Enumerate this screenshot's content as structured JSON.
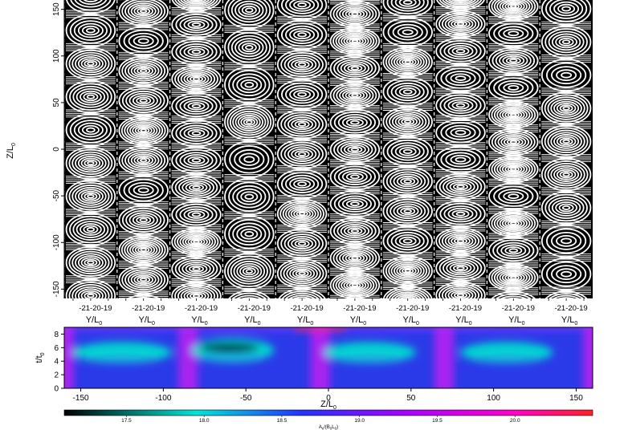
{
  "chart_data": [
    {
      "type": "contour",
      "panel_count": 10,
      "ylabel": "Z/L",
      "ylabel_sub": "0",
      "xlabel": "Y/L",
      "xlabel_sub": "0",
      "yticks": [
        150,
        100,
        50,
        0,
        -50,
        -100,
        -150
      ],
      "ylim": [
        -160,
        160
      ],
      "panel_xticks": [
        "-21",
        "-20",
        "-19"
      ],
      "panel_xlim": [
        -21.5,
        -18.5
      ]
    },
    {
      "type": "heatmap",
      "ylabel": "t/t",
      "ylabel_sub": "0",
      "xlabel": "Z/L",
      "xlabel_sub": "0",
      "xticks": [
        -150,
        -100,
        -50,
        0,
        50,
        100,
        150
      ],
      "xlim": [
        -160,
        160
      ],
      "yticks": [
        0,
        2,
        4,
        6,
        8
      ],
      "ylim": [
        0,
        9
      ],
      "colorbar": {
        "label": "A",
        "label_sub": "y",
        "label_suffix": "/(B",
        "label_sub2": "0",
        "label_mid": "L",
        "label_sub3": "0",
        "label_end": ")",
        "ticks": [
          17.5,
          18.0,
          18.5,
          19.0,
          19.5,
          20.0
        ],
        "range": [
          17.1,
          20.5
        ],
        "colors": [
          "#000000",
          "#00e5d8",
          "#2233ff",
          "#aa00ff",
          "#ff00cc",
          "#ff2222"
        ]
      },
      "cyan_regions": [
        {
          "z_center": -125,
          "z_half_width": 30,
          "t_center": 5.3,
          "t_half_height": 1.5
        },
        {
          "z_center": -58,
          "z_half_width": 25,
          "t_center": 5.6,
          "t_half_height": 1.7
        },
        {
          "z_center": 25,
          "z_half_width": 28,
          "t_center": 5.3,
          "t_half_height": 1.5
        },
        {
          "z_center": 108,
          "z_half_width": 28,
          "t_center": 5.3,
          "t_half_height": 1.5
        }
      ],
      "dark_regions": [
        {
          "z_center": -60,
          "z_half_width": 18,
          "t_center": 6.0,
          "t_half_height": 0.7
        }
      ]
    }
  ]
}
